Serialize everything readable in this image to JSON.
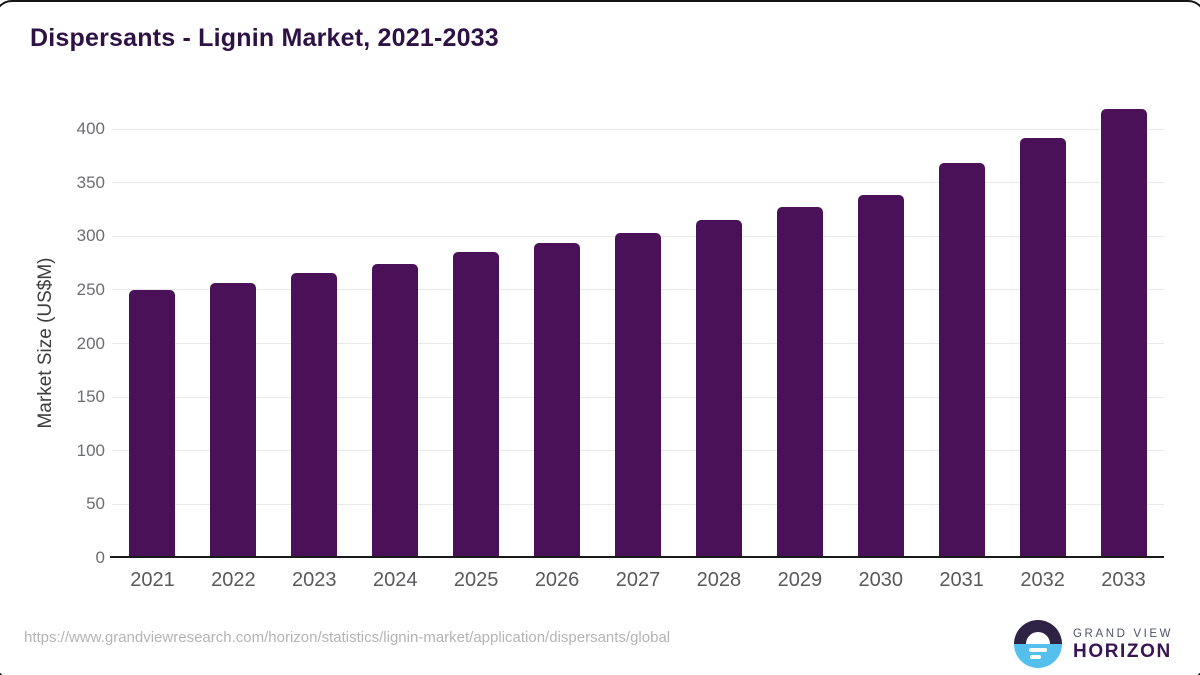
{
  "title": "Dispersants - Lignin Market, 2021-2033",
  "chart_data": {
    "type": "bar",
    "title": "Dispersants - Lignin Market, 2021-2033",
    "categories": [
      "2021",
      "2022",
      "2023",
      "2024",
      "2025",
      "2026",
      "2027",
      "2028",
      "2029",
      "2030",
      "2031",
      "2032",
      "2033"
    ],
    "values": [
      248,
      255,
      264,
      272,
      283,
      292,
      301,
      313,
      325,
      337,
      366,
      390,
      417
    ],
    "xlabel": "",
    "ylabel": "Market Size (US$M)",
    "ylim": [
      0,
      400
    ],
    "yticks": [
      0,
      50,
      100,
      150,
      200,
      250,
      300,
      350,
      400
    ],
    "grid": "horizontal-light",
    "legend_position": "none",
    "bar_color": "#4a1158"
  },
  "colors": {
    "bar": "#4a1158",
    "title": "#2f1245",
    "gridline": "#e9e9e9",
    "axis_line": "#1a1a1a",
    "ytick_text": "#6d6e71",
    "xtick_text": "#58595b",
    "logo_dark_half": "#2e2245",
    "logo_blue_half": "#55c0ee"
  },
  "footer": {
    "source_url": "https://www.grandviewresearch.com/horizon/statistics/lignin-market/application/dispersants/global",
    "logo_line1": "GRAND VIEW",
    "logo_line2": "HORIZON"
  }
}
